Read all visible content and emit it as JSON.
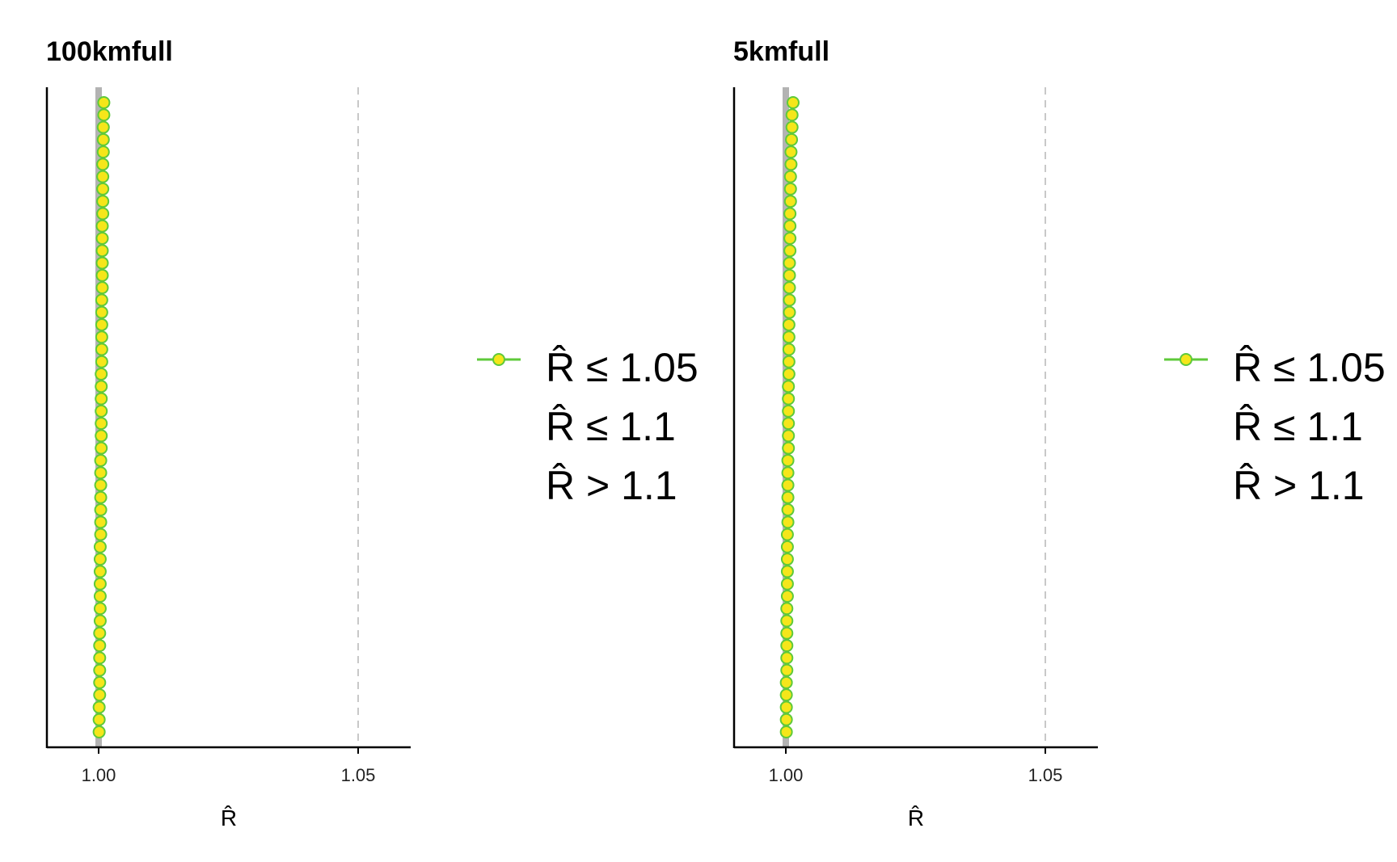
{
  "chart_data": [
    {
      "type": "scatter",
      "title": "100kmfull",
      "xlabel": "R̂",
      "ylabel": "",
      "xlim": [
        0.99,
        1.06
      ],
      "xticks": [
        1.0,
        1.05
      ],
      "xtick_labels": [
        "1.00",
        "1.05"
      ],
      "reference_lines": [
        1.0,
        1.05
      ],
      "rhat_values": [
        1.001,
        1.001,
        1.0009,
        1.0009,
        1.0009,
        1.0008,
        1.0008,
        1.0008,
        1.0008,
        1.0008,
        1.0007,
        1.0007,
        1.0007,
        1.0007,
        1.0007,
        1.0007,
        1.0006,
        1.0006,
        1.0006,
        1.0006,
        1.0006,
        1.0006,
        1.0005,
        1.0005,
        1.0005,
        1.0005,
        1.0005,
        1.0005,
        1.0005,
        1.0004,
        1.0004,
        1.0004,
        1.0004,
        1.0004,
        1.0004,
        1.0004,
        1.0003,
        1.0003,
        1.0003,
        1.0003,
        1.0003,
        1.0003,
        1.0003,
        1.0002,
        1.0002,
        1.0002,
        1.0002,
        1.0002,
        1.0002,
        1.0001,
        1.0001,
        1.0001
      ],
      "legend": [
        "R̂ ≤ 1.05",
        "R̂ ≤ 1.1",
        "R̂ > 1.1"
      ],
      "legend_position": "right",
      "point_fill": "#f5e61a",
      "point_stroke": "#5ec93a",
      "grid": false
    },
    {
      "type": "scatter",
      "title": "5kmfull",
      "xlabel": "R̂",
      "ylabel": "",
      "xlim": [
        0.99,
        1.06
      ],
      "xticks": [
        1.0,
        1.05
      ],
      "xtick_labels": [
        "1.00",
        "1.05"
      ],
      "reference_lines": [
        1.0,
        1.05
      ],
      "rhat_values": [
        1.0014,
        1.0012,
        1.0012,
        1.0011,
        1.001,
        1.001,
        1.0009,
        1.0009,
        1.0009,
        1.0008,
        1.0008,
        1.0008,
        1.0008,
        1.0007,
        1.0007,
        1.0007,
        1.0007,
        1.0007,
        1.0006,
        1.0006,
        1.0006,
        1.0006,
        1.0006,
        1.0005,
        1.0005,
        1.0005,
        1.0005,
        1.0005,
        1.0005,
        1.0004,
        1.0004,
        1.0004,
        1.0004,
        1.0004,
        1.0004,
        1.0003,
        1.0003,
        1.0003,
        1.0003,
        1.0003,
        1.0003,
        1.0002,
        1.0002,
        1.0002,
        1.0002,
        1.0002,
        1.0002,
        1.0001,
        1.0001,
        1.0001,
        1.0001,
        1.0001
      ],
      "legend": [
        "R̂ ≤ 1.05",
        "R̂ ≤ 1.1",
        "R̂ > 1.1"
      ],
      "legend_position": "right",
      "point_fill": "#f5e61a",
      "point_stroke": "#5ec93a",
      "grid": false
    }
  ]
}
